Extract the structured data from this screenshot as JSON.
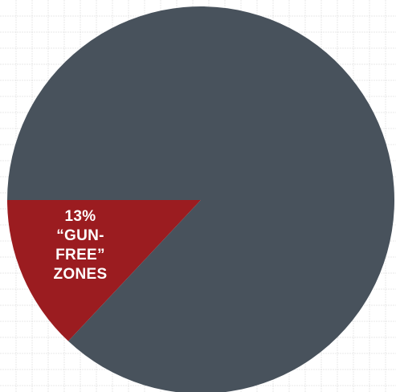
{
  "chart_data": {
    "type": "pie",
    "title": "",
    "slices": [
      {
        "label": "“GUN-FREE” ZONES",
        "value": 13,
        "color": "#9b1c20",
        "label_lines": [
          "13%",
          "“GUN-",
          "FREE”",
          "ZONES"
        ]
      },
      {
        "label": "",
        "value": 87,
        "color": "#48525c"
      }
    ],
    "background": "#ffffff",
    "grid": true
  }
}
